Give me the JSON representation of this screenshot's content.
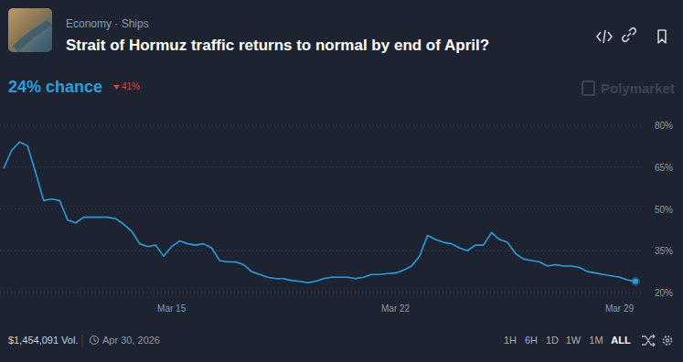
{
  "header": {
    "category": "Economy · Ships",
    "chance": "24% chance",
    "change": "41%",
    "brand": "Polymarket"
  },
  "footer": {
    "volume": "$1,454,091 Vol.",
    "end_date": "Apr 30, 2026",
    "ranges": [
      "1H",
      "6H",
      "1D",
      "1W",
      "1M",
      "ALL"
    ],
    "active_range": "ALL"
  },
  "chart_data": {
    "type": "line",
    "title": "Strait of Hormuz traffic returns to normal by end of April?",
    "categories": [
      null,
      null,
      null,
      null,
      null,
      null,
      null,
      null,
      null,
      null,
      null,
      null,
      null,
      null,
      null,
      null,
      null,
      null,
      null,
      null,
      null,
      "Mar 15",
      null,
      null,
      null,
      null,
      null,
      null,
      null,
      null,
      null,
      null,
      null,
      null,
      null,
      null,
      null,
      null,
      null,
      null,
      null,
      null,
      null,
      null,
      null,
      null,
      null,
      null,
      null,
      "Mar 22",
      null,
      null,
      null,
      null,
      null,
      null,
      null,
      null,
      null,
      null,
      null,
      null,
      null,
      null,
      null,
      null,
      null,
      null,
      null,
      null,
      null,
      null,
      null,
      null,
      null,
      null,
      null,
      "Mar 29",
      null,
      null
    ],
    "values": [
      64.5,
      71,
      74,
      72.5,
      63,
      53,
      53.5,
      53,
      46,
      45,
      47,
      47,
      47,
      47,
      46.5,
      44.5,
      42,
      37.5,
      36.5,
      37,
      33,
      36.5,
      38.5,
      37.5,
      37,
      37.5,
      36,
      31.5,
      31,
      31,
      30,
      27.5,
      26.5,
      25.5,
      25,
      25,
      24.3,
      24,
      23.5,
      24,
      25,
      25.5,
      25.5,
      25.5,
      25,
      25.5,
      26.5,
      26.5,
      26.8,
      27,
      28,
      29.5,
      33,
      40.5,
      39,
      38,
      37.5,
      36,
      35,
      37,
      37,
      41.5,
      39,
      38,
      34,
      32,
      31.5,
      31,
      29.5,
      30,
      29.5,
      29.5,
      29,
      27.5,
      27,
      26.5,
      26,
      25.5,
      24.5,
      24
    ],
    "color": "#2d9cdb",
    "ylim": [
      20,
      80
    ],
    "yticks": [
      {
        "value": 20,
        "label": "20%"
      },
      {
        "value": 35,
        "label": "35%"
      },
      {
        "value": 50,
        "label": "50%"
      },
      {
        "value": 65,
        "label": "65%"
      },
      {
        "value": 80,
        "label": "80%"
      }
    ],
    "grid": true
  }
}
